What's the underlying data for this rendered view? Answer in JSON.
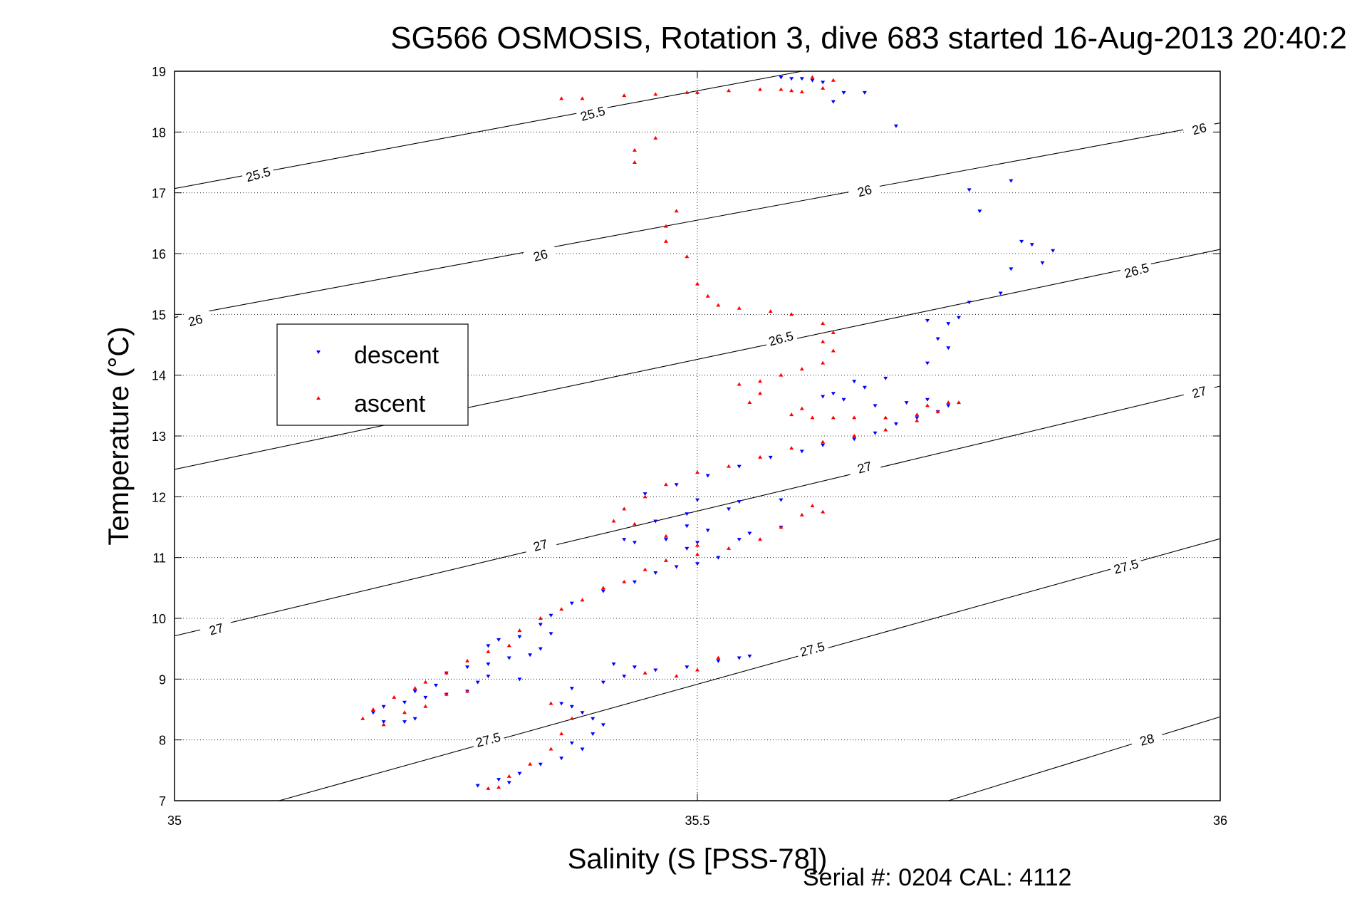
{
  "chart_data": {
    "type": "scatter",
    "title": "SG566 OSMOSIS, Rotation 3, dive 683 started 16-Aug-2013 20:40:2",
    "xlabel": "Salinity (S [PSS-78])",
    "ylabel": "Temperature (°C)",
    "xlim": [
      35,
      36
    ],
    "ylim": [
      7,
      19
    ],
    "x_ticks": [
      "35",
      "35.5",
      "36"
    ],
    "y_ticks": [
      "7",
      "8",
      "9",
      "10",
      "11",
      "12",
      "13",
      "14",
      "15",
      "16",
      "17",
      "18",
      "19"
    ],
    "grid": "dotted",
    "legend_position": "left",
    "footer": "Serial #: 0204  CAL: 4112",
    "density_contours": [
      {
        "label": "25.5",
        "points": [
          [
            35.0,
            17.07
          ],
          [
            35.6,
            19.0
          ]
        ]
      },
      {
        "label": "26",
        "points": [
          [
            35.0,
            14.95
          ],
          [
            36.0,
            18.15
          ]
        ]
      },
      {
        "label": "26.5",
        "points": [
          [
            35.0,
            12.45
          ],
          [
            36.0,
            16.07
          ]
        ]
      },
      {
        "label": "27",
        "points": [
          [
            35.0,
            9.71
          ],
          [
            36.0,
            13.82
          ]
        ]
      },
      {
        "label": "27.5",
        "points": [
          [
            35.1,
            7.0
          ],
          [
            36.0,
            11.31
          ]
        ]
      },
      {
        "label": "28",
        "points": [
          [
            35.74,
            7.0
          ],
          [
            36.0,
            8.38
          ]
        ]
      }
    ],
    "contour_label_positions": [
      {
        "label": "25.5",
        "x": 35.08,
        "y": 17.3
      },
      {
        "label": "25.5",
        "x": 35.4,
        "y": 18.3
      },
      {
        "label": "26",
        "x": 35.02,
        "y": 14.9
      },
      {
        "label": "26",
        "x": 35.35,
        "y": 15.97
      },
      {
        "label": "26",
        "x": 35.66,
        "y": 17.03
      },
      {
        "label": "26",
        "x": 35.98,
        "y": 18.05
      },
      {
        "label": "26.5",
        "x": 35.58,
        "y": 14.6
      },
      {
        "label": "26.5",
        "x": 35.92,
        "y": 15.72
      },
      {
        "label": "27",
        "x": 35.04,
        "y": 9.82
      },
      {
        "label": "27",
        "x": 35.35,
        "y": 11.2
      },
      {
        "label": "27",
        "x": 35.66,
        "y": 12.48
      },
      {
        "label": "27",
        "x": 35.98,
        "y": 13.72
      },
      {
        "label": "27.5",
        "x": 35.3,
        "y": 8.0
      },
      {
        "label": "27.5",
        "x": 35.61,
        "y": 9.49
      },
      {
        "label": "27.5",
        "x": 35.91,
        "y": 10.85
      },
      {
        "label": "28",
        "x": 35.93,
        "y": 8.0
      }
    ],
    "series": [
      {
        "name": "descent",
        "color": "#0000ff",
        "marker": "triangle-down",
        "points": [
          [
            35.58,
            18.9
          ],
          [
            35.59,
            18.88
          ],
          [
            35.6,
            18.88
          ],
          [
            35.61,
            18.85
          ],
          [
            35.62,
            18.82
          ],
          [
            35.64,
            18.65
          ],
          [
            35.66,
            18.65
          ],
          [
            35.63,
            18.5
          ],
          [
            35.69,
            18.1
          ],
          [
            35.76,
            17.05
          ],
          [
            35.8,
            17.2
          ],
          [
            35.77,
            16.7
          ],
          [
            35.81,
            16.2
          ],
          [
            35.82,
            16.15
          ],
          [
            35.84,
            16.05
          ],
          [
            35.8,
            15.75
          ],
          [
            35.83,
            15.85
          ],
          [
            35.79,
            15.35
          ],
          [
            35.76,
            15.2
          ],
          [
            35.75,
            14.95
          ],
          [
            35.72,
            14.9
          ],
          [
            35.74,
            14.85
          ],
          [
            35.73,
            14.6
          ],
          [
            35.74,
            14.45
          ],
          [
            35.72,
            14.2
          ],
          [
            35.68,
            13.95
          ],
          [
            35.65,
            13.9
          ],
          [
            35.66,
            13.8
          ],
          [
            35.63,
            13.7
          ],
          [
            35.62,
            13.65
          ],
          [
            35.64,
            13.6
          ],
          [
            35.67,
            13.5
          ],
          [
            35.7,
            13.55
          ],
          [
            35.72,
            13.6
          ],
          [
            35.74,
            13.5
          ],
          [
            35.73,
            13.4
          ],
          [
            35.71,
            13.3
          ],
          [
            35.69,
            13.2
          ],
          [
            35.67,
            13.05
          ],
          [
            35.65,
            12.95
          ],
          [
            35.62,
            12.85
          ],
          [
            35.6,
            12.75
          ],
          [
            35.57,
            12.65
          ],
          [
            35.54,
            12.5
          ],
          [
            35.51,
            12.35
          ],
          [
            35.48,
            12.2
          ],
          [
            35.45,
            12.05
          ],
          [
            35.5,
            11.95
          ],
          [
            35.54,
            11.92
          ],
          [
            35.58,
            11.95
          ],
          [
            35.53,
            11.8
          ],
          [
            35.49,
            11.72
          ],
          [
            35.46,
            11.6
          ],
          [
            35.49,
            11.52
          ],
          [
            35.51,
            11.45
          ],
          [
            35.55,
            11.4
          ],
          [
            35.58,
            11.5
          ],
          [
            35.54,
            11.3
          ],
          [
            35.5,
            11.25
          ],
          [
            35.47,
            11.3
          ],
          [
            35.44,
            11.25
          ],
          [
            35.43,
            11.3
          ],
          [
            35.49,
            11.15
          ],
          [
            35.52,
            11.0
          ],
          [
            35.5,
            10.9
          ],
          [
            35.48,
            10.85
          ],
          [
            35.46,
            10.75
          ],
          [
            35.44,
            10.6
          ],
          [
            35.41,
            10.45
          ],
          [
            35.38,
            10.25
          ],
          [
            35.36,
            10.05
          ],
          [
            35.35,
            9.9
          ],
          [
            35.36,
            9.75
          ],
          [
            35.33,
            9.7
          ],
          [
            35.31,
            9.65
          ],
          [
            35.3,
            9.55
          ],
          [
            35.35,
            9.5
          ],
          [
            35.34,
            9.4
          ],
          [
            35.32,
            9.35
          ],
          [
            35.3,
            9.25
          ],
          [
            35.28,
            9.2
          ],
          [
            35.26,
            9.1
          ],
          [
            35.3,
            9.05
          ],
          [
            35.33,
            9.0
          ],
          [
            35.29,
            8.95
          ],
          [
            35.25,
            8.9
          ],
          [
            35.23,
            8.8
          ],
          [
            35.26,
            8.75
          ],
          [
            35.28,
            8.8
          ],
          [
            35.24,
            8.7
          ],
          [
            35.22,
            8.62
          ],
          [
            35.2,
            8.55
          ],
          [
            35.19,
            8.45
          ],
          [
            35.23,
            8.35
          ],
          [
            35.22,
            8.3
          ],
          [
            35.2,
            8.3
          ],
          [
            35.42,
            9.25
          ],
          [
            35.44,
            9.2
          ],
          [
            35.46,
            9.15
          ],
          [
            35.49,
            9.2
          ],
          [
            35.52,
            9.3
          ],
          [
            35.54,
            9.35
          ],
          [
            35.55,
            9.38
          ],
          [
            35.43,
            9.05
          ],
          [
            35.41,
            8.95
          ],
          [
            35.38,
            8.85
          ],
          [
            35.37,
            8.6
          ],
          [
            35.38,
            8.55
          ],
          [
            35.39,
            8.45
          ],
          [
            35.4,
            8.35
          ],
          [
            35.41,
            8.25
          ],
          [
            35.4,
            8.1
          ],
          [
            35.38,
            7.95
          ],
          [
            35.39,
            7.85
          ],
          [
            35.37,
            7.7
          ],
          [
            35.35,
            7.6
          ],
          [
            35.33,
            7.45
          ],
          [
            35.31,
            7.35
          ],
          [
            35.29,
            7.25
          ],
          [
            35.32,
            7.3
          ]
        ]
      },
      {
        "name": "ascent",
        "color": "#ff0000",
        "marker": "triangle-up",
        "points": [
          [
            35.37,
            18.55
          ],
          [
            35.39,
            18.55
          ],
          [
            35.43,
            18.6
          ],
          [
            35.46,
            18.62
          ],
          [
            35.49,
            18.65
          ],
          [
            35.5,
            18.65
          ],
          [
            35.53,
            18.68
          ],
          [
            35.56,
            18.7
          ],
          [
            35.58,
            18.7
          ],
          [
            35.59,
            18.68
          ],
          [
            35.6,
            18.66
          ],
          [
            35.62,
            18.72
          ],
          [
            35.63,
            18.85
          ],
          [
            35.61,
            18.9
          ],
          [
            35.44,
            17.5
          ],
          [
            35.44,
            17.7
          ],
          [
            35.46,
            17.9
          ],
          [
            35.48,
            16.7
          ],
          [
            35.47,
            16.45
          ],
          [
            35.47,
            16.2
          ],
          [
            35.49,
            15.95
          ],
          [
            35.5,
            15.5
          ],
          [
            35.51,
            15.3
          ],
          [
            35.52,
            15.15
          ],
          [
            35.54,
            15.1
          ],
          [
            35.57,
            15.05
          ],
          [
            35.59,
            15.0
          ],
          [
            35.62,
            14.85
          ],
          [
            35.63,
            14.7
          ],
          [
            35.62,
            14.55
          ],
          [
            35.63,
            14.4
          ],
          [
            35.62,
            14.2
          ],
          [
            35.6,
            14.1
          ],
          [
            35.58,
            14.0
          ],
          [
            35.56,
            13.9
          ],
          [
            35.54,
            13.85
          ],
          [
            35.56,
            13.7
          ],
          [
            35.55,
            13.55
          ],
          [
            35.6,
            13.45
          ],
          [
            35.59,
            13.35
          ],
          [
            35.61,
            13.3
          ],
          [
            35.63,
            13.3
          ],
          [
            35.65,
            13.3
          ],
          [
            35.68,
            13.3
          ],
          [
            35.71,
            13.35
          ],
          [
            35.72,
            13.5
          ],
          [
            35.74,
            13.55
          ],
          [
            35.75,
            13.55
          ],
          [
            35.73,
            13.4
          ],
          [
            35.71,
            13.25
          ],
          [
            35.68,
            13.1
          ],
          [
            35.65,
            13.0
          ],
          [
            35.62,
            12.9
          ],
          [
            35.59,
            12.8
          ],
          [
            35.56,
            12.65
          ],
          [
            35.53,
            12.5
          ],
          [
            35.5,
            12.4
          ],
          [
            35.47,
            12.2
          ],
          [
            35.45,
            12.0
          ],
          [
            35.43,
            11.8
          ],
          [
            35.42,
            11.6
          ],
          [
            35.44,
            11.55
          ],
          [
            35.47,
            11.35
          ],
          [
            35.5,
            11.2
          ],
          [
            35.53,
            11.15
          ],
          [
            35.56,
            11.3
          ],
          [
            35.58,
            11.5
          ],
          [
            35.6,
            11.7
          ],
          [
            35.62,
            11.75
          ],
          [
            35.61,
            11.85
          ],
          [
            35.5,
            11.05
          ],
          [
            35.47,
            10.95
          ],
          [
            35.45,
            10.8
          ],
          [
            35.43,
            10.6
          ],
          [
            35.41,
            10.5
          ],
          [
            35.39,
            10.3
          ],
          [
            35.37,
            10.15
          ],
          [
            35.35,
            10.0
          ],
          [
            35.33,
            9.8
          ],
          [
            35.32,
            9.55
          ],
          [
            35.3,
            9.45
          ],
          [
            35.28,
            9.3
          ],
          [
            35.26,
            9.1
          ],
          [
            35.24,
            8.95
          ],
          [
            35.23,
            8.85
          ],
          [
            35.21,
            8.7
          ],
          [
            35.19,
            8.5
          ],
          [
            35.18,
            8.35
          ],
          [
            35.2,
            8.25
          ],
          [
            35.22,
            8.45
          ],
          [
            35.24,
            8.55
          ],
          [
            35.26,
            8.75
          ],
          [
            35.28,
            8.8
          ],
          [
            35.45,
            9.1
          ],
          [
            35.48,
            9.05
          ],
          [
            35.5,
            9.15
          ],
          [
            35.52,
            9.35
          ],
          [
            35.36,
            8.6
          ],
          [
            35.38,
            8.35
          ],
          [
            35.37,
            8.1
          ],
          [
            35.36,
            7.85
          ],
          [
            35.34,
            7.6
          ],
          [
            35.32,
            7.4
          ],
          [
            35.3,
            7.2
          ],
          [
            35.31,
            7.22
          ]
        ]
      }
    ]
  }
}
